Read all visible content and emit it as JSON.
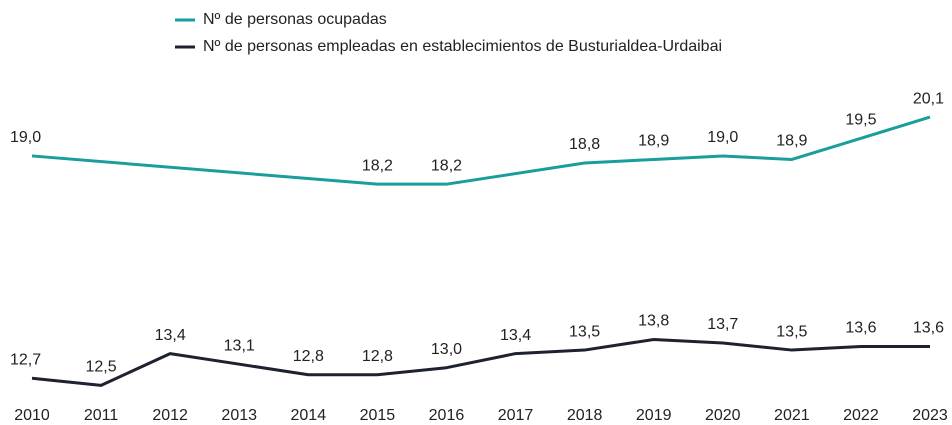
{
  "chart_data": {
    "type": "line",
    "xlim": [
      2010,
      2023
    ],
    "xticks": [
      2010,
      2011,
      2012,
      2013,
      2014,
      2015,
      2016,
      2017,
      2018,
      2019,
      2020,
      2021,
      2022,
      2023
    ],
    "ylim": [
      12,
      20.5
    ],
    "legend": "top",
    "series": [
      {
        "name": "Nº de personas ocupadas",
        "color": "#1a9e9b",
        "x": [
          2010,
          2015,
          2016,
          2018,
          2019,
          2020,
          2021,
          2022,
          2023
        ],
        "values": [
          19.0,
          18.2,
          18.2,
          18.8,
          18.9,
          19.0,
          18.9,
          19.5,
          20.1
        ],
        "value_labels": [
          "19,0",
          "18,2",
          "18,2",
          "18,8",
          "18,9",
          "19,0",
          "18,9",
          "19,5",
          "20,1"
        ]
      },
      {
        "name": "Nº de personas empleadas en establecimientos de Busturialdea-Urdaibai",
        "color": "#1e2230",
        "x": [
          2010,
          2011,
          2012,
          2013,
          2014,
          2015,
          2016,
          2017,
          2018,
          2019,
          2020,
          2021,
          2022,
          2023
        ],
        "values": [
          12.7,
          12.5,
          13.4,
          13.1,
          12.8,
          12.8,
          13.0,
          13.4,
          13.5,
          13.8,
          13.7,
          13.5,
          13.6,
          13.6
        ],
        "value_labels": [
          "12,7",
          "12,5",
          "13,4",
          "13,1",
          "12,8",
          "12,8",
          "13,0",
          "13,4",
          "13,5",
          "13,8",
          "13,7",
          "13,5",
          "13,6",
          "13,6"
        ]
      }
    ]
  }
}
